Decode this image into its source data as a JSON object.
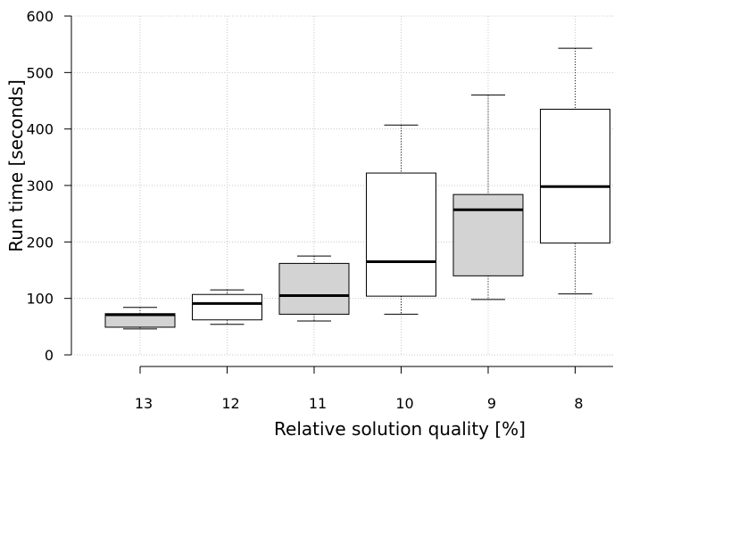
{
  "chart_data": {
    "type": "boxplot",
    "xlabel": "Relative solution quality [%]",
    "ylabel": "Run time [seconds]",
    "ylim": [
      0,
      600
    ],
    "yticks": [
      0,
      100,
      200,
      300,
      400,
      500,
      600
    ],
    "grid": true,
    "categories": [
      "13",
      "12",
      "11",
      "10",
      "9",
      "8"
    ],
    "boxes": [
      {
        "label": "13",
        "min": 46,
        "q1": 49,
        "median": 71,
        "q3": 73,
        "max": 84,
        "fill": "#d3d3d3"
      },
      {
        "label": "12",
        "min": 54,
        "q1": 62,
        "median": 91,
        "q3": 107,
        "max": 115,
        "fill": "#ffffff"
      },
      {
        "label": "11",
        "min": 60,
        "q1": 72,
        "median": 105,
        "q3": 162,
        "max": 175,
        "fill": "#d3d3d3"
      },
      {
        "label": "10",
        "min": 72,
        "q1": 104,
        "median": 165,
        "q3": 322,
        "max": 407,
        "fill": "#ffffff"
      },
      {
        "label": "9",
        "min": 98,
        "q1": 140,
        "median": 257,
        "q3": 284,
        "max": 460,
        "fill": "#d3d3d3"
      },
      {
        "label": "8",
        "min": 108,
        "q1": 198,
        "median": 298,
        "q3": 435,
        "max": 543,
        "fill": "#ffffff"
      }
    ]
  }
}
